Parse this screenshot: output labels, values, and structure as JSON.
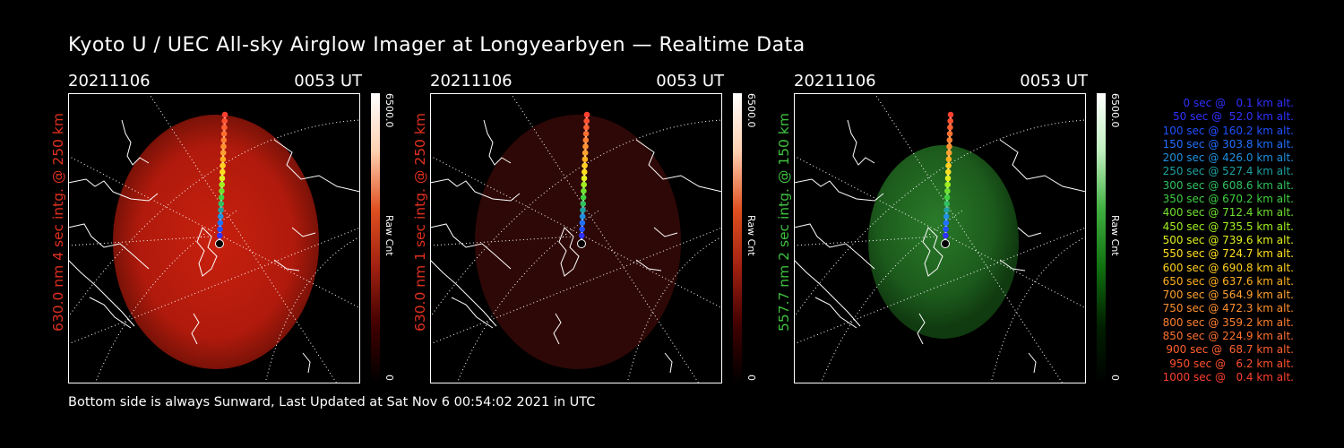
{
  "title": "Kyoto U / UEC All-sky Airglow Imager at Longyearbyen — Realtime Data",
  "footer": "Bottom side is always Sunward, Last Updated at Sat Nov  6 00:54:02 2021 in UTC",
  "panels": [
    {
      "date": "20211106",
      "time": "0053 UT",
      "ylabel": "630.0 nm 4 sec intg. @ 250 km",
      "label_color": "#e03020",
      "cbar_max": "6500.0",
      "cbar_unit": "Raw Cnt",
      "cbar_min": "0"
    },
    {
      "date": "20211106",
      "time": "0053 UT",
      "ylabel": "630.0 nm 1 sec intg. @ 250 km",
      "label_color": "#e03020",
      "cbar_max": "6500.0",
      "cbar_unit": "Raw Cnt",
      "cbar_min": "0"
    },
    {
      "date": "20211106",
      "time": "0053 UT",
      "ylabel": "557.7 nm 2 sec intg. @ 150 km",
      "label_color": "#40c040",
      "cbar_max": "6500.0",
      "cbar_unit": "Raw Cnt",
      "cbar_min": "0"
    }
  ],
  "legend": [
    {
      "text": "0 sec @   0.1 km alt.",
      "color": "#3030ff"
    },
    {
      "text": "50 sec @  52.0 km alt.",
      "color": "#3030ff"
    },
    {
      "text": "100 sec @ 160.2 km alt.",
      "color": "#2050ff"
    },
    {
      "text": "150 sec @ 303.8 km alt.",
      "color": "#2070ff"
    },
    {
      "text": "200 sec @ 426.0 km alt.",
      "color": "#2090e0"
    },
    {
      "text": "250 sec @ 527.4 km alt.",
      "color": "#20a0a0"
    },
    {
      "text": "300 sec @ 608.6 km alt.",
      "color": "#30c060"
    },
    {
      "text": "350 sec @ 670.2 km alt.",
      "color": "#40d040"
    },
    {
      "text": "400 sec @ 712.4 km alt.",
      "color": "#70e030"
    },
    {
      "text": "450 sec @ 735.5 km alt.",
      "color": "#a0f020"
    },
    {
      "text": "500 sec @ 739.6 km alt.",
      "color": "#e0f020"
    },
    {
      "text": "550 sec @ 724.7 km alt.",
      "color": "#ffe020"
    },
    {
      "text": "600 sec @ 690.8 km alt.",
      "color": "#ffd020"
    },
    {
      "text": "650 sec @ 637.6 km alt.",
      "color": "#ffb020"
    },
    {
      "text": "700 sec @ 564.9 km alt.",
      "color": "#ffa030"
    },
    {
      "text": "750 sec @ 472.3 km alt.",
      "color": "#ff9030"
    },
    {
      "text": "800 sec @ 359.2 km alt.",
      "color": "#ff8030"
    },
    {
      "text": "850 sec @ 224.9 km alt.",
      "color": "#ff7030"
    },
    {
      "text": "900 sec @  68.7 km alt.",
      "color": "#ff6030"
    },
    {
      "text": "950 sec @   6.2 km alt.",
      "color": "#ff5030"
    },
    {
      "text": "1000 sec @   0.4 km alt.",
      "color": "#ff4030"
    }
  ],
  "colors": {
    "red_glow": "#c02010",
    "dim_red_glow": "#3a0a08",
    "green_glow": "#1f6a1f"
  }
}
